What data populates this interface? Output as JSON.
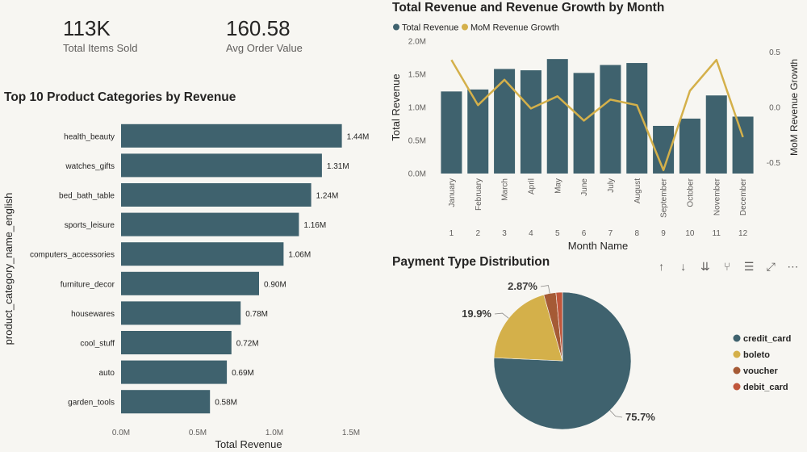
{
  "kpis": [
    {
      "value": "113K",
      "label": "Total Items Sold"
    },
    {
      "value": "160.58",
      "label": "Avg Order Value"
    }
  ],
  "colors": {
    "teal": "#3f626e",
    "gold": "#d4b04a",
    "brown": "#a55a35",
    "rust": "#c0563b",
    "axis": "#605e5c",
    "grid": "#e1dfdd"
  },
  "visual_header_icons": [
    "sort-ascending-icon",
    "sort-descending-icon",
    "expand-all-icon",
    "drill-down-icon",
    "filter-icon",
    "focus-mode-icon",
    "more-options-icon"
  ],
  "chart_data": [
    {
      "type": "bar",
      "orientation": "horizontal",
      "title": "Top 10 Product Categories by Revenue",
      "xlabel": "Total Revenue",
      "ylabel": "product_category_name_english",
      "categories": [
        "health_beauty",
        "watches_gifts",
        "bed_bath_table",
        "sports_leisure",
        "computers_accessories",
        "furniture_decor",
        "housewares",
        "cool_stuff",
        "auto",
        "garden_tools"
      ],
      "values": [
        1.44,
        1.31,
        1.24,
        1.16,
        1.06,
        0.9,
        0.78,
        0.72,
        0.69,
        0.58
      ],
      "value_labels": [
        "1.44M",
        "1.31M",
        "1.24M",
        "1.16M",
        "1.06M",
        "0.90M",
        "0.78M",
        "0.72M",
        "0.69M",
        "0.58M"
      ],
      "xlim": [
        0,
        1.5
      ],
      "x_ticks": [
        "0.0M",
        "0.5M",
        "1.0M",
        "1.5M"
      ]
    },
    {
      "type": "bar+line",
      "title": "Total Revenue and Revenue Growth by Month",
      "xlabel": "Month Name",
      "ylabel": "Total Revenue",
      "y2label": "MoM Revenue Growth",
      "legend": [
        "Total Revenue",
        "MoM Revenue Growth"
      ],
      "legend_position": "top-left",
      "categories": [
        "January",
        "February",
        "March",
        "April",
        "May",
        "June",
        "July",
        "August",
        "September",
        "October",
        "November",
        "December"
      ],
      "month_numbers": [
        "1",
        "2",
        "3",
        "4",
        "5",
        "6",
        "7",
        "8",
        "9",
        "10",
        "11",
        "12"
      ],
      "series": [
        {
          "name": "Total Revenue",
          "axis": "left",
          "values": [
            1.24,
            1.27,
            1.58,
            1.56,
            1.73,
            1.52,
            1.64,
            1.67,
            0.72,
            0.83,
            1.18,
            0.86
          ]
        },
        {
          "name": "MoM Revenue Growth",
          "axis": "right",
          "values": [
            0.43,
            0.02,
            0.25,
            -0.01,
            0.1,
            -0.12,
            0.07,
            0.02,
            -0.57,
            0.15,
            0.43,
            -0.27
          ]
        }
      ],
      "ylim": [
        0,
        2.0
      ],
      "y_ticks": [
        "0.0M",
        "0.5M",
        "1.0M",
        "1.5M",
        "2.0M"
      ],
      "y2lim": [
        -0.6,
        0.6
      ],
      "y2_ticks": [
        "-0.5",
        "0.0",
        "0.5"
      ]
    },
    {
      "type": "pie",
      "title": "Payment Type Distribution",
      "labels": [
        "credit_card",
        "boleto",
        "voucher",
        "debit_card"
      ],
      "values": [
        75.7,
        19.9,
        2.87,
        1.53
      ],
      "data_labels": [
        "75.7%",
        "19.9%",
        "2.87%",
        ""
      ],
      "legend_position": "right"
    }
  ]
}
